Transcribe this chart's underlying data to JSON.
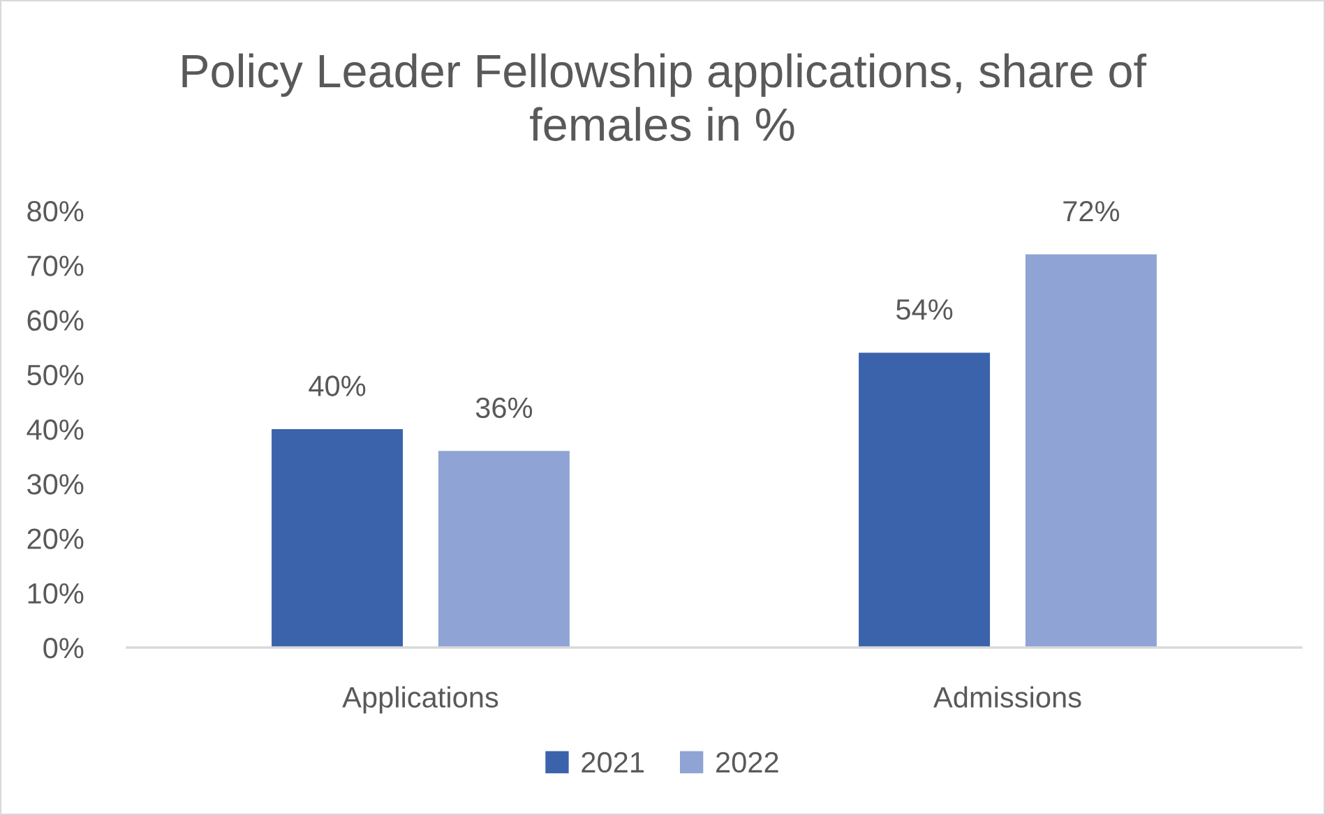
{
  "chart_data": {
    "type": "bar",
    "title": "Policy Leader Fellowship applications, share of females in %",
    "categories": [
      "Applications",
      "Admissions"
    ],
    "series": [
      {
        "name": "2021",
        "color": "#3a63ab",
        "values": [
          40,
          54
        ],
        "value_labels": [
          "40%",
          "54%"
        ]
      },
      {
        "name": "2022",
        "color": "#8fa3d4",
        "values": [
          36,
          72
        ],
        "value_labels": [
          "36%",
          "72%"
        ]
      }
    ],
    "ylim": [
      0,
      80
    ],
    "yticks": [
      {
        "value": 0,
        "label": "0%"
      },
      {
        "value": 10,
        "label": "10%"
      },
      {
        "value": 20,
        "label": "20%"
      },
      {
        "value": 30,
        "label": "30%"
      },
      {
        "value": 40,
        "label": "40%"
      },
      {
        "value": 50,
        "label": "50%"
      },
      {
        "value": 60,
        "label": "60%"
      },
      {
        "value": 70,
        "label": "70%"
      },
      {
        "value": 80,
        "label": "80%"
      }
    ],
    "grid": false,
    "legend": "bottom"
  }
}
